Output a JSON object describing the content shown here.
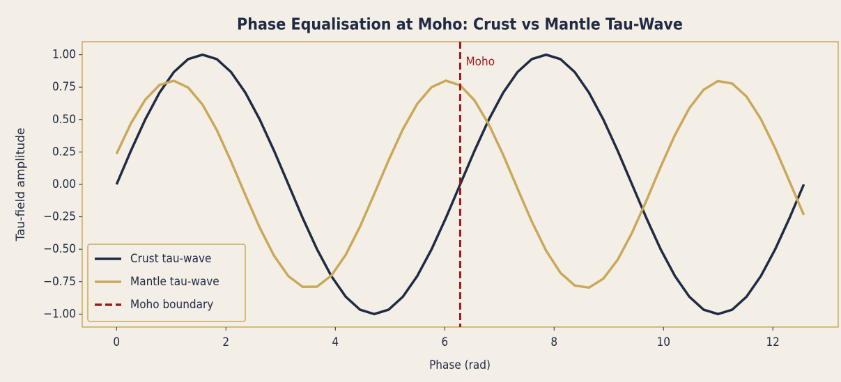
{
  "chart_data": {
    "type": "line",
    "title": "Phase Equalisation at Moho: Crust vs Mantle Tau-Wave",
    "xlabel": "Phase (rad)",
    "ylabel": "Tau-field amplitude",
    "x": [
      0,
      0.262,
      0.524,
      0.785,
      1.047,
      1.309,
      1.571,
      1.833,
      2.094,
      2.356,
      2.618,
      2.88,
      3.142,
      3.403,
      3.665,
      3.927,
      4.189,
      4.451,
      4.712,
      4.974,
      5.236,
      5.498,
      5.76,
      6.021,
      6.283,
      6.545,
      6.807,
      7.069,
      7.33,
      7.592,
      7.854,
      8.116,
      8.378,
      8.639,
      8.901,
      9.163,
      9.425,
      9.687,
      9.948,
      10.21,
      10.472,
      10.734,
      10.996,
      11.257,
      11.519,
      11.781,
      12.043,
      12.305,
      12.566
    ],
    "series": [
      {
        "name": "Crust tau-wave",
        "color": "#1f2a44",
        "values": [
          0,
          0.259,
          0.5,
          0.707,
          0.866,
          0.966,
          1,
          0.966,
          0.866,
          0.707,
          0.5,
          0.259,
          0,
          -0.259,
          -0.5,
          -0.707,
          -0.866,
          -0.966,
          -1,
          -0.966,
          -0.866,
          -0.707,
          -0.5,
          -0.259,
          0,
          0.259,
          0.5,
          0.707,
          0.866,
          0.966,
          1,
          0.966,
          0.866,
          0.707,
          0.5,
          0.259,
          0,
          -0.259,
          -0.5,
          -0.707,
          -0.866,
          -0.966,
          -1,
          -0.966,
          -0.866,
          -0.707,
          -0.5,
          -0.259,
          0
        ]
      },
      {
        "name": "Mantle tau-wave",
        "color": "#c9a85a",
        "values": [
          0.236,
          0.47,
          0.653,
          0.767,
          0.799,
          0.747,
          0.616,
          0.419,
          0.177,
          -0.083,
          -0.334,
          -0.55,
          -0.708,
          -0.79,
          -0.789,
          -0.703,
          -0.544,
          -0.326,
          -0.074,
          0.186,
          0.426,
          0.621,
          0.75,
          0.8,
          0.764,
          0.648,
          0.462,
          0.228,
          -0.031,
          -0.286,
          -0.511,
          -0.682,
          -0.78,
          -0.796,
          -0.727,
          -0.581,
          -0.373,
          -0.126,
          0.135,
          0.381,
          0.587,
          0.73,
          0.797,
          0.778,
          0.677,
          0.504,
          0.278,
          0.022,
          -0.236
        ]
      }
    ],
    "reference_line": {
      "name": "Moho boundary",
      "label": "Moho",
      "x": 6.283,
      "color": "#9b1c1c"
    },
    "xlim": [
      -0.628,
      13.195
    ],
    "ylim": [
      -1.1,
      1.1
    ],
    "xticks": [
      0,
      2,
      4,
      6,
      8,
      10,
      12
    ],
    "yticks": [
      {
        "value": -1,
        "label": "−1.00"
      },
      {
        "value": -0.75,
        "label": "−0.75"
      },
      {
        "value": -0.5,
        "label": "−0.50"
      },
      {
        "value": -0.25,
        "label": "−0.25"
      },
      {
        "value": 0,
        "label": "0.00"
      },
      {
        "value": 0.25,
        "label": "0.25"
      },
      {
        "value": 0.5,
        "label": "0.50"
      },
      {
        "value": 0.75,
        "label": "0.75"
      },
      {
        "value": 1,
        "label": "1.00"
      }
    ],
    "legend": "lower left",
    "grid": false
  }
}
